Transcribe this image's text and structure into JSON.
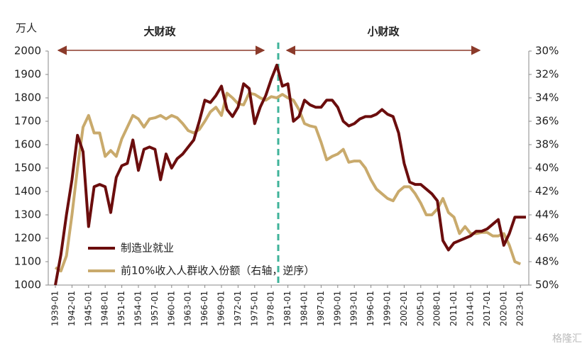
{
  "chart_data": {
    "type": "line",
    "unit_label": "万人",
    "annotations": [
      "大财政",
      "小财政"
    ],
    "watermark": "格隆汇",
    "x": [
      1939,
      1940,
      1941,
      1942,
      1943,
      1944,
      1945,
      1946,
      1947,
      1948,
      1949,
      1950,
      1951,
      1952,
      1953,
      1954,
      1955,
      1956,
      1957,
      1958,
      1959,
      1960,
      1961,
      1962,
      1963,
      1964,
      1965,
      1966,
      1967,
      1968,
      1969,
      1970,
      1971,
      1972,
      1973,
      1974,
      1975,
      1976,
      1977,
      1978,
      1979,
      1980,
      1981,
      1982,
      1983,
      1984,
      1985,
      1986,
      1987,
      1988,
      1989,
      1990,
      1991,
      1992,
      1993,
      1994,
      1995,
      1996,
      1997,
      1998,
      1999,
      2000,
      2001,
      2002,
      2003,
      2004,
      2005,
      2006,
      2007,
      2008,
      2009,
      2010,
      2011,
      2012,
      2013,
      2014,
      2015,
      2016,
      2017,
      2018,
      2019,
      2020,
      2021,
      2022,
      2023,
      2024
    ],
    "xlim": [
      1939,
      2024
    ],
    "xticks": [
      {
        "value": 1939,
        "label": "1939-01"
      },
      {
        "value": 1942,
        "label": "1942-01"
      },
      {
        "value": 1945,
        "label": "1945-01"
      },
      {
        "value": 1948,
        "label": "1948-01"
      },
      {
        "value": 1951,
        "label": "1951-01"
      },
      {
        "value": 1954,
        "label": "1954-01"
      },
      {
        "value": 1957,
        "label": "1957-01"
      },
      {
        "value": 1960,
        "label": "1960-01"
      },
      {
        "value": 1963,
        "label": "1963-01"
      },
      {
        "value": 1966,
        "label": "1966-01"
      },
      {
        "value": 1969,
        "label": "1969-01"
      },
      {
        "value": 1972,
        "label": "1972-01"
      },
      {
        "value": 1975,
        "label": "1975-01"
      },
      {
        "value": 1978,
        "label": "1978-01"
      },
      {
        "value": 1981,
        "label": "1981-01"
      },
      {
        "value": 1984,
        "label": "1984-01"
      },
      {
        "value": 1987,
        "label": "1987-01"
      },
      {
        "value": 1990,
        "label": "1990-01"
      },
      {
        "value": 1993,
        "label": "1993-01"
      },
      {
        "value": 1996,
        "label": "1996-01"
      },
      {
        "value": 1999,
        "label": "1999-01"
      },
      {
        "value": 2002,
        "label": "2002-01"
      },
      {
        "value": 2005,
        "label": "2005-01"
      },
      {
        "value": 2008,
        "label": "2008-01"
      },
      {
        "value": 2011,
        "label": "2011-01"
      },
      {
        "value": 2014,
        "label": "2014-01"
      },
      {
        "value": 2017,
        "label": "2017-01"
      },
      {
        "value": 2020,
        "label": "2020-01"
      },
      {
        "value": 2023,
        "label": "2023-01"
      }
    ],
    "ylim": [
      1000,
      2000
    ],
    "yticks": [
      1000,
      1100,
      1200,
      1300,
      1400,
      1500,
      1600,
      1700,
      1800,
      1900,
      2000
    ],
    "y2lim": [
      30,
      50
    ],
    "y2_reversed": true,
    "y2ticks": [
      {
        "value": 30,
        "label": "30%"
      },
      {
        "value": 32,
        "label": "32%"
      },
      {
        "value": 34,
        "label": "34%"
      },
      {
        "value": 36,
        "label": "36%"
      },
      {
        "value": 38,
        "label": "38%"
      },
      {
        "value": 40,
        "label": "40%"
      },
      {
        "value": 42,
        "label": "42%"
      },
      {
        "value": 44,
        "label": "44%"
      },
      {
        "value": 46,
        "label": "46%"
      },
      {
        "value": 48,
        "label": "48%"
      },
      {
        "value": 50,
        "label": "50%"
      }
    ],
    "series": [
      {
        "name": "制造业就业",
        "color": "#6b0d0d",
        "values": [
          1000,
          1130,
          1300,
          1450,
          1640,
          1570,
          1250,
          1420,
          1430,
          1420,
          1310,
          1460,
          1510,
          1520,
          1620,
          1490,
          1580,
          1590,
          1580,
          1450,
          1560,
          1500,
          1540,
          1560,
          1590,
          1620,
          1700,
          1790,
          1780,
          1810,
          1850,
          1750,
          1720,
          1760,
          1860,
          1840,
          1690,
          1760,
          1810,
          1880,
          1940,
          1850,
          1860,
          1700,
          1720,
          1790,
          1770,
          1760,
          1760,
          1790,
          1790,
          1760,
          1700,
          1680,
          1690,
          1710,
          1720,
          1720,
          1730,
          1750,
          1730,
          1720,
          1650,
          1520,
          1440,
          1430,
          1430,
          1410,
          1390,
          1360,
          1190,
          1150,
          1180,
          1190,
          1200,
          1210,
          1230,
          1230,
          1240,
          1260,
          1280,
          1170,
          1220,
          1290,
          1290,
          1290
        ]
      },
      {
        "name": "前10%收入人群收入份额（右轴，逆序）",
        "color": "#c9aa6c",
        "axis": "y2",
        "values": [
          48.5,
          48.8,
          47.5,
          44,
          40,
          36.5,
          35.5,
          37,
          37,
          39,
          38.5,
          39,
          37.5,
          36.5,
          35.5,
          35.8,
          36.5,
          35.8,
          35.7,
          35.5,
          35.8,
          35.5,
          35.7,
          36.2,
          36.8,
          37,
          36.7,
          36,
          35.2,
          34.8,
          35.5,
          33.6,
          34,
          34.5,
          34.6,
          33.6,
          33.7,
          34,
          34.2,
          33.9,
          34,
          33.7,
          34,
          34.2,
          35,
          36.2,
          36.4,
          36.5,
          37.8,
          39.3,
          39,
          38.8,
          38.4,
          39.5,
          39.4,
          39.4,
          40,
          41,
          41.8,
          42.2,
          42.6,
          42.8,
          42,
          41.6,
          41.6,
          42.2,
          43,
          44,
          44,
          43.5,
          42.6,
          43.8,
          44.2,
          45.6,
          45,
          45.6,
          45.6,
          45.5,
          45.5,
          45.8,
          45.8,
          45.6,
          46.6,
          48,
          48.2,
          null
        ]
      }
    ]
  }
}
